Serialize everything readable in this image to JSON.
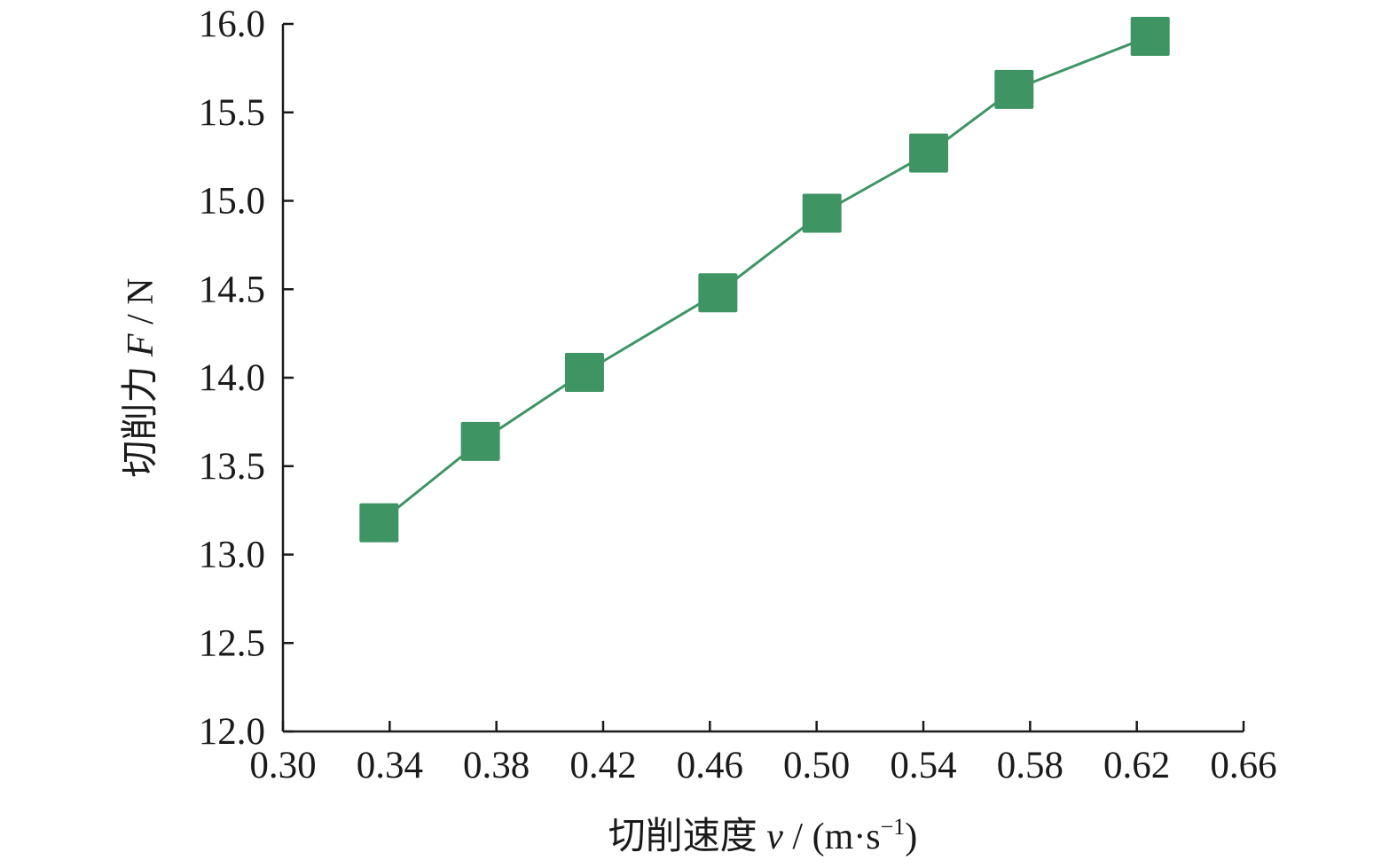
{
  "chart_data": {
    "type": "line",
    "xlabel": {
      "prefix": "切削速度 ",
      "var": "v",
      "unit": " / (m·s",
      "sup": "−1",
      "close": ")"
    },
    "ylabel": {
      "prefix": "切削力 ",
      "var": "F",
      "unit": " / N"
    },
    "xlim": [
      0.3,
      0.66
    ],
    "ylim": [
      12.0,
      16.0
    ],
    "x_ticks": [
      "0.30",
      "0.34",
      "0.38",
      "0.42",
      "0.46",
      "0.50",
      "0.54",
      "0.58",
      "0.62",
      "0.66"
    ],
    "y_ticks": [
      "12.0",
      "12.5",
      "13.0",
      "13.5",
      "14.0",
      "14.5",
      "15.0",
      "15.5",
      "16.0"
    ],
    "grid": false,
    "marker": "square",
    "series": [
      {
        "color": "#3f9464",
        "points": [
          {
            "x": 0.336,
            "y": 13.18
          },
          {
            "x": 0.374,
            "y": 13.64
          },
          {
            "x": 0.413,
            "y": 14.03
          },
          {
            "x": 0.463,
            "y": 14.48
          },
          {
            "x": 0.502,
            "y": 14.93
          },
          {
            "x": 0.542,
            "y": 15.27
          },
          {
            "x": 0.574,
            "y": 15.63
          },
          {
            "x": 0.625,
            "y": 15.93
          }
        ]
      }
    ]
  }
}
